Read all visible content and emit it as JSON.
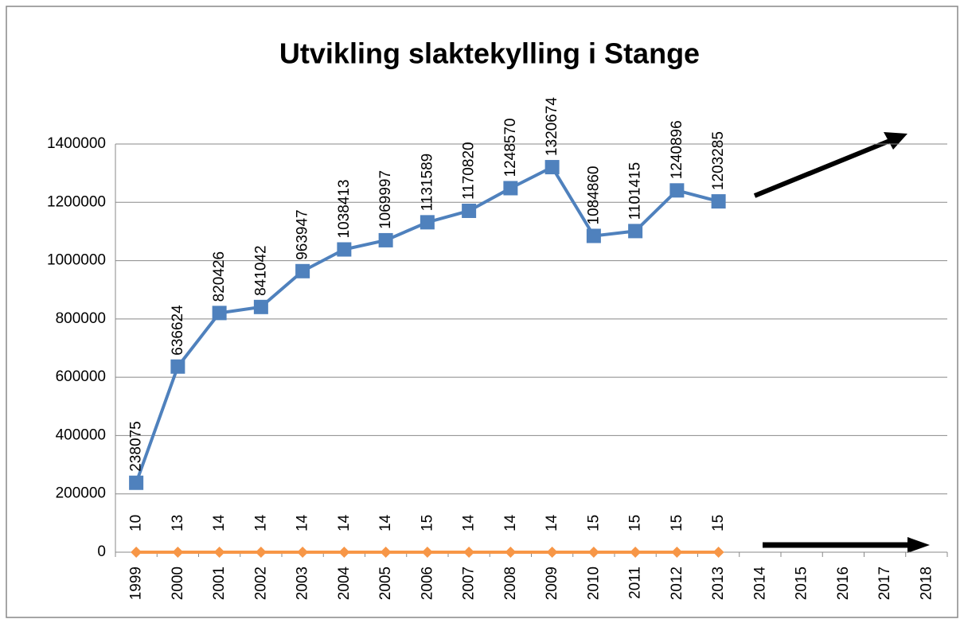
{
  "chart_data": {
    "type": "line",
    "title": "Utvikling slaktekylling i Stange",
    "categories": [
      "1999",
      "2000",
      "2001",
      "2002",
      "2003",
      "2004",
      "2005",
      "2006",
      "2007",
      "2008",
      "2009",
      "2010",
      "2011",
      "2012",
      "2013",
      "2014",
      "2015",
      "2016",
      "2017",
      "2018"
    ],
    "series": [
      {
        "color": "#4f81bd",
        "marker": "square",
        "values": [
          238075,
          636624,
          820426,
          841042,
          963947,
          1038413,
          1069997,
          1131589,
          1170820,
          1248570,
          1320674,
          1084860,
          1101415,
          1240896,
          1203285,
          null,
          null,
          null,
          null,
          null
        ]
      },
      {
        "color": "#f79646",
        "marker": "diamond",
        "values": [
          10,
          13,
          14,
          14,
          14,
          14,
          14,
          15,
          14,
          14,
          14,
          15,
          15,
          15,
          15,
          null,
          null,
          null,
          null,
          null
        ]
      }
    ],
    "ylim": [
      0,
      1400000
    ],
    "yticks": [
      0,
      200000,
      400000,
      600000,
      800000,
      1000000,
      1200000,
      1400000
    ],
    "grid": true
  }
}
